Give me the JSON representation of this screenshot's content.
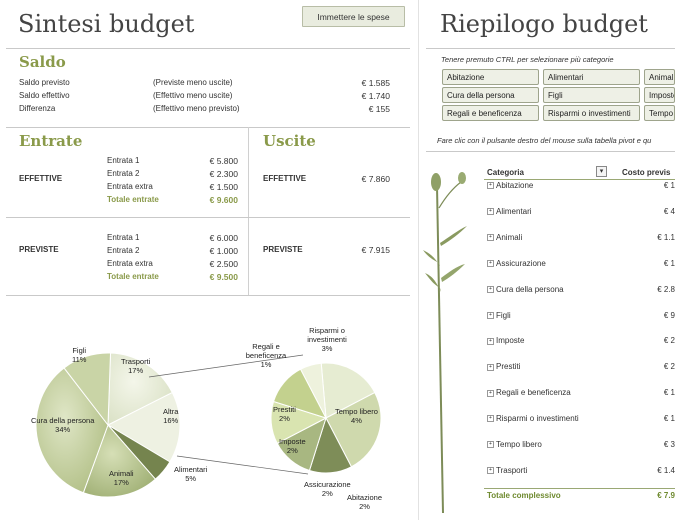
{
  "left": {
    "title": "Sintesi budget",
    "button_label": "Immettere le spese",
    "saldo": {
      "heading": "Saldo",
      "rows": [
        {
          "label": "Saldo previsto",
          "note": "(Previste meno uscite)",
          "value": "€ 1.585"
        },
        {
          "label": "Saldo effettivo",
          "note": "(Effettivo meno uscite)",
          "value": "€ 1.740"
        },
        {
          "label": "Differenza",
          "note": "(Effettivo meno previsto)",
          "value": "€ 155"
        }
      ]
    },
    "entrate": {
      "heading": "Entrate",
      "effettive": {
        "label": "EFFETTIVE",
        "rows": [
          {
            "label": "Entrata 1",
            "value": "€ 5.800"
          },
          {
            "label": "Entrata 2",
            "value": "€ 2.300"
          },
          {
            "label": "Entrata extra",
            "value": "€ 1.500"
          }
        ],
        "total_label": "Totale entrate",
        "total_value": "€ 9.600"
      },
      "previste": {
        "label": "PREVISTE",
        "rows": [
          {
            "label": "Entrata 1",
            "value": "€ 6.000"
          },
          {
            "label": "Entrata 2",
            "value": "€ 1.000"
          },
          {
            "label": "Entrata extra",
            "value": "€ 2.500"
          }
        ],
        "total_label": "Totale entrate",
        "total_value": "€ 9.500"
      }
    },
    "uscite": {
      "heading": "Uscite",
      "effettive": {
        "label": "EFFETTIVE",
        "value": "€ 7.860"
      },
      "previste": {
        "label": "PREVISTE",
        "value": "€ 7.915"
      }
    }
  },
  "chart_data": [
    {
      "type": "pie",
      "title": "",
      "slices": [
        {
          "label": "Cura della persona",
          "pct": "34%",
          "value": 34
        },
        {
          "label": "Figli",
          "pct": "11%",
          "value": 11
        },
        {
          "label": "Trasporti",
          "pct": "17%",
          "value": 17
        },
        {
          "label": "Altra",
          "pct": "16%",
          "value": 16
        },
        {
          "label": "Alimentari",
          "pct": "5%",
          "value": 5
        },
        {
          "label": "Animali",
          "pct": "17%",
          "value": 17
        }
      ]
    },
    {
      "type": "pie",
      "title": "",
      "slices": [
        {
          "label": "Risparmi o investimenti",
          "pct": "3%",
          "value": 3
        },
        {
          "label": "Tempo libero",
          "pct": "4%",
          "value": 4
        },
        {
          "label": "Abitazione",
          "pct": "2%",
          "value": 2
        },
        {
          "label": "Assicurazione",
          "pct": "2%",
          "value": 2
        },
        {
          "label": "Imposte",
          "pct": "2%",
          "value": 2
        },
        {
          "label": "Prestiti",
          "pct": "2%",
          "value": 2
        },
        {
          "label": "Regali e beneficenza",
          "pct": "1%",
          "value": 1
        }
      ]
    }
  ],
  "right": {
    "title": "Riepilogo budget",
    "hint": "Tenere premuto CTRL per selezionare più categorie",
    "slicers": [
      "Abitazione",
      "Alimentari",
      "Animali",
      "Cura della persona",
      "Figli",
      "Imposte",
      "Regali e beneficenza",
      "Risparmi o investimenti",
      "Tempo libero"
    ],
    "pivot_hint": "Fare clic con il pulsante destro del mouse sulla tabella pivot e qu",
    "pivot": {
      "col_category": "Categoria",
      "col_cost": "Costo previs",
      "rows": [
        {
          "label": "Abitazione",
          "value": "€ 1"
        },
        {
          "label": "Alimentari",
          "value": "€ 4"
        },
        {
          "label": "Animali",
          "value": "€ 1.1"
        },
        {
          "label": "Assicurazione",
          "value": "€ 1"
        },
        {
          "label": "Cura della persona",
          "value": "€ 2.8"
        },
        {
          "label": "Figli",
          "value": "€ 9"
        },
        {
          "label": "Imposte",
          "value": "€ 2"
        },
        {
          "label": "Prestiti",
          "value": "€ 2"
        },
        {
          "label": "Regali e beneficenza",
          "value": "€ 1"
        },
        {
          "label": "Risparmi o investimenti",
          "value": "€ 1"
        },
        {
          "label": "Tempo libero",
          "value": "€ 3"
        },
        {
          "label": "Trasporti",
          "value": "€ 1.4"
        }
      ],
      "total_label": "Totale complessivo",
      "total_value": "€ 7.9"
    }
  }
}
